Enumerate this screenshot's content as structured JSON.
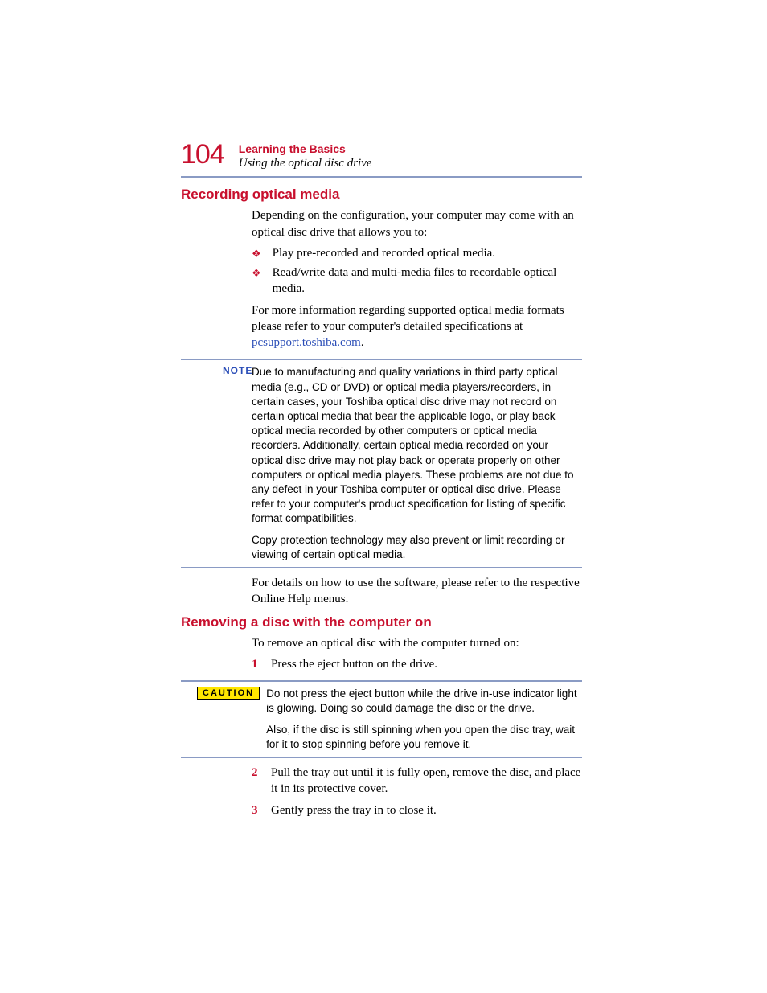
{
  "header": {
    "page_number": "104",
    "chapter": "Learning the Basics",
    "section": "Using the optical disc drive"
  },
  "h1": "Recording optical media",
  "p1": "Depending on the configuration, your computer may come with an optical disc drive that allows you to:",
  "bullets": [
    "Play pre-recorded and recorded optical media.",
    "Read/write data and multi-media files to recordable optical media."
  ],
  "p2a": "For more information regarding supported optical media formats please refer to your computer's detailed specifications at ",
  "p2link": "pcsupport.toshiba.com",
  "p2b": ".",
  "note_label": "NOTE",
  "note_p1": "Due to manufacturing and quality variations in third party optical media (e.g., CD or DVD) or optical media players/recorders, in certain cases, your Toshiba optical disc drive may not record on certain optical media that bear the applicable logo, or play back optical media recorded by other computers or optical media recorders. Additionally, certain optical media recorded on your optical disc drive may not play back or operate properly on other computers or optical media players. These problems are not due to any defect in your Toshiba computer or optical disc drive. Please refer to your computer's product specification for listing of specific format compatibilities.",
  "note_p2": "Copy protection technology may also prevent or limit recording or viewing of certain optical media.",
  "p3": "For details on how to use the software, please refer to the respective Online Help menus.",
  "h2": "Removing a disc with the computer on",
  "p4": "To remove an optical disc with the computer turned on:",
  "step1_num": "1",
  "step1": "Press the eject button on the drive.",
  "caution_label": "CAUTION",
  "caution_p1": "Do not press the eject button while the drive in-use indicator light is glowing. Doing so could damage the disc or the drive.",
  "caution_p2": "Also, if the disc is still spinning when you open the disc tray, wait for it to stop spinning before you remove it.",
  "step2_num": "2",
  "step2": "Pull the tray out until it is fully open, remove the disc, and place it in its protective cover.",
  "step3_num": "3",
  "step3": "Gently press the tray in to close it."
}
